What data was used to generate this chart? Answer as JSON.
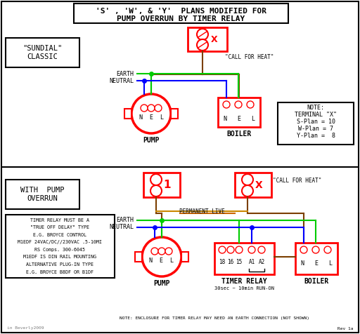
{
  "title_line1": "'S' , 'W', & 'Y'  PLANS MODIFIED FOR",
  "title_line2": "PUMP OVERRUN BY TIMER RELAY",
  "bg_color": "#ffffff",
  "red": "#ff0000",
  "green": "#00cc00",
  "blue": "#0000ff",
  "brown": "#7B3F00",
  "orange": "#FF8C00",
  "sundial_label": "\"SUNDIAL\"\nCLASSIC",
  "overrun_label": "WITH  PUMP\nOVERRUN",
  "note_lines": [
    "NOTE:",
    "TERMINAL \"X\"",
    "S-Plan = 10",
    "W-Plan = 7",
    "Y-Plan =  8"
  ],
  "timer_box_lines": [
    "TIMER RELAY MUST BE A",
    "\"TRUE OFF DELAY\" TYPE",
    "E.G. BROYCE CONTROL",
    "M1EDF 24VAC/DC//230VAC .5-10MI",
    "RS Comps. 300-6045",
    "M1EDF IS DIN RAIL MOUNTING",
    "ALTERNATIVE PLUG-IN TYPE",
    "E.G. BROYCE B8DF OR B1DF"
  ],
  "footer_note": "NOTE: ENCLOSURE FOR TIMER RELAY MAY NEED AN EARTH CONNECTION (NOT SHOWN)",
  "footer_left": "in Beverly2009",
  "footer_right": "Rev 1a"
}
